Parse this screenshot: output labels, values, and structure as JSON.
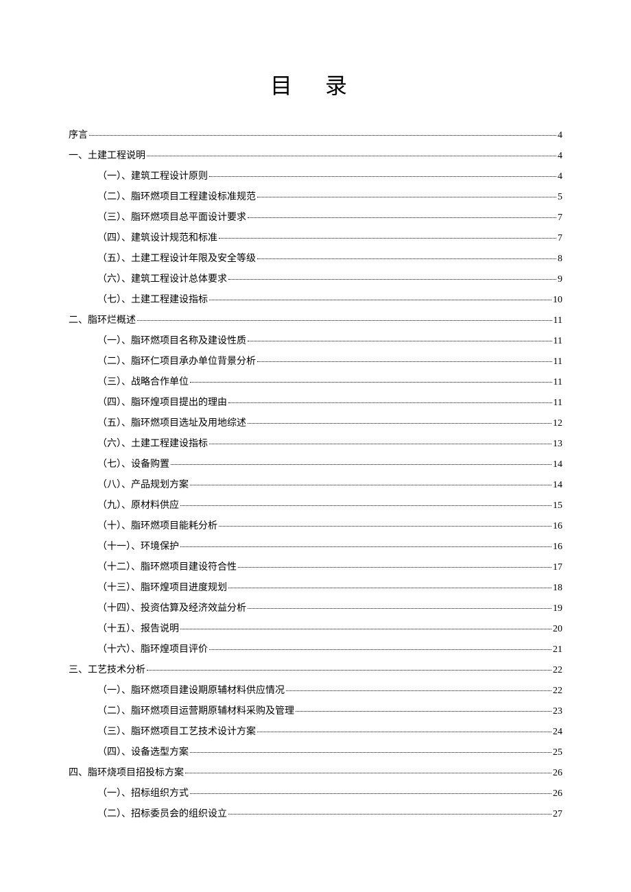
{
  "title": "目 录",
  "entries": [
    {
      "level": 0,
      "label": "序言",
      "page": "4"
    },
    {
      "level": 0,
      "label": "一、土建工程说明",
      "page": "4"
    },
    {
      "level": 1,
      "label": "（一）、建筑工程设计原则",
      "page": "4"
    },
    {
      "level": 1,
      "label": "（二）、脂环燃项目工程建设标准规范",
      "page": "5"
    },
    {
      "level": 1,
      "label": "（三）、脂环燃项目总平面设计要求",
      "page": "7"
    },
    {
      "level": 1,
      "label": "（四）、建筑设计规范和标准",
      "page": "7"
    },
    {
      "level": 1,
      "label": "（五）、土建工程设计年限及安全等级",
      "page": "8"
    },
    {
      "level": 1,
      "label": "（六）、建筑工程设计总体要求",
      "page": "9"
    },
    {
      "level": 1,
      "label": "（七）、土建工程建设指标",
      "page": "10"
    },
    {
      "level": 0,
      "label": "二、脂环烂概述",
      "page": "11"
    },
    {
      "level": 1,
      "label": "（一）、脂环燃项目名称及建设性质",
      "page": "11"
    },
    {
      "level": 1,
      "label": "（二）、脂环仁项目承办单位背景分析",
      "page": "11"
    },
    {
      "level": 1,
      "label": "（三）、战略合作单位",
      "page": "11"
    },
    {
      "level": 1,
      "label": "（四）、脂环煌项目提出的理由",
      "page": "11"
    },
    {
      "level": 1,
      "label": "（五）、脂环燃项目选址及用地综述",
      "page": "12"
    },
    {
      "level": 1,
      "label": "（六）、土建工程建设指标",
      "page": "13"
    },
    {
      "level": 1,
      "label": "（七）、设备购置",
      "page": "14"
    },
    {
      "level": 1,
      "label": "（八）、产品规划方案",
      "page": "14"
    },
    {
      "level": 1,
      "label": "（九）、原材料供应",
      "page": "15"
    },
    {
      "level": 1,
      "label": "（十）、脂环燃项目能耗分析",
      "page": "16"
    },
    {
      "level": 1,
      "label": "（十一）、环境保护",
      "page": "16"
    },
    {
      "level": 1,
      "label": "（十二）、脂环燃项目建设符合性",
      "page": "17"
    },
    {
      "level": 1,
      "label": "（十三）、脂环煌项目进度规划",
      "page": "18"
    },
    {
      "level": 1,
      "label": "（十四）、投资估算及经济效益分析",
      "page": "19"
    },
    {
      "level": 1,
      "label": "（十五）、报告说明",
      "page": "20"
    },
    {
      "level": 1,
      "label": "（十六）、脂环煌项目评价",
      "page": "21"
    },
    {
      "level": 0,
      "label": "三、工艺技术分析",
      "page": "22"
    },
    {
      "level": 1,
      "label": "（一）、脂环燃项目建设期原辅材料供应情况",
      "page": "22"
    },
    {
      "level": 1,
      "label": "（二）、脂环燃项目运营期原辅材料采购及管理",
      "page": "23"
    },
    {
      "level": 1,
      "label": "（三）、脂环燃项目工艺技术设计方案",
      "page": "24"
    },
    {
      "level": 1,
      "label": "（四）、设备选型方案",
      "page": "25"
    },
    {
      "level": 0,
      "label": "四、脂环烧项目招投标方案",
      "page": "26"
    },
    {
      "level": 1,
      "label": "（一）、招标组织方式",
      "page": "26"
    },
    {
      "level": 1,
      "label": "（二）、招标委员会的组织设立",
      "page": "27"
    }
  ]
}
